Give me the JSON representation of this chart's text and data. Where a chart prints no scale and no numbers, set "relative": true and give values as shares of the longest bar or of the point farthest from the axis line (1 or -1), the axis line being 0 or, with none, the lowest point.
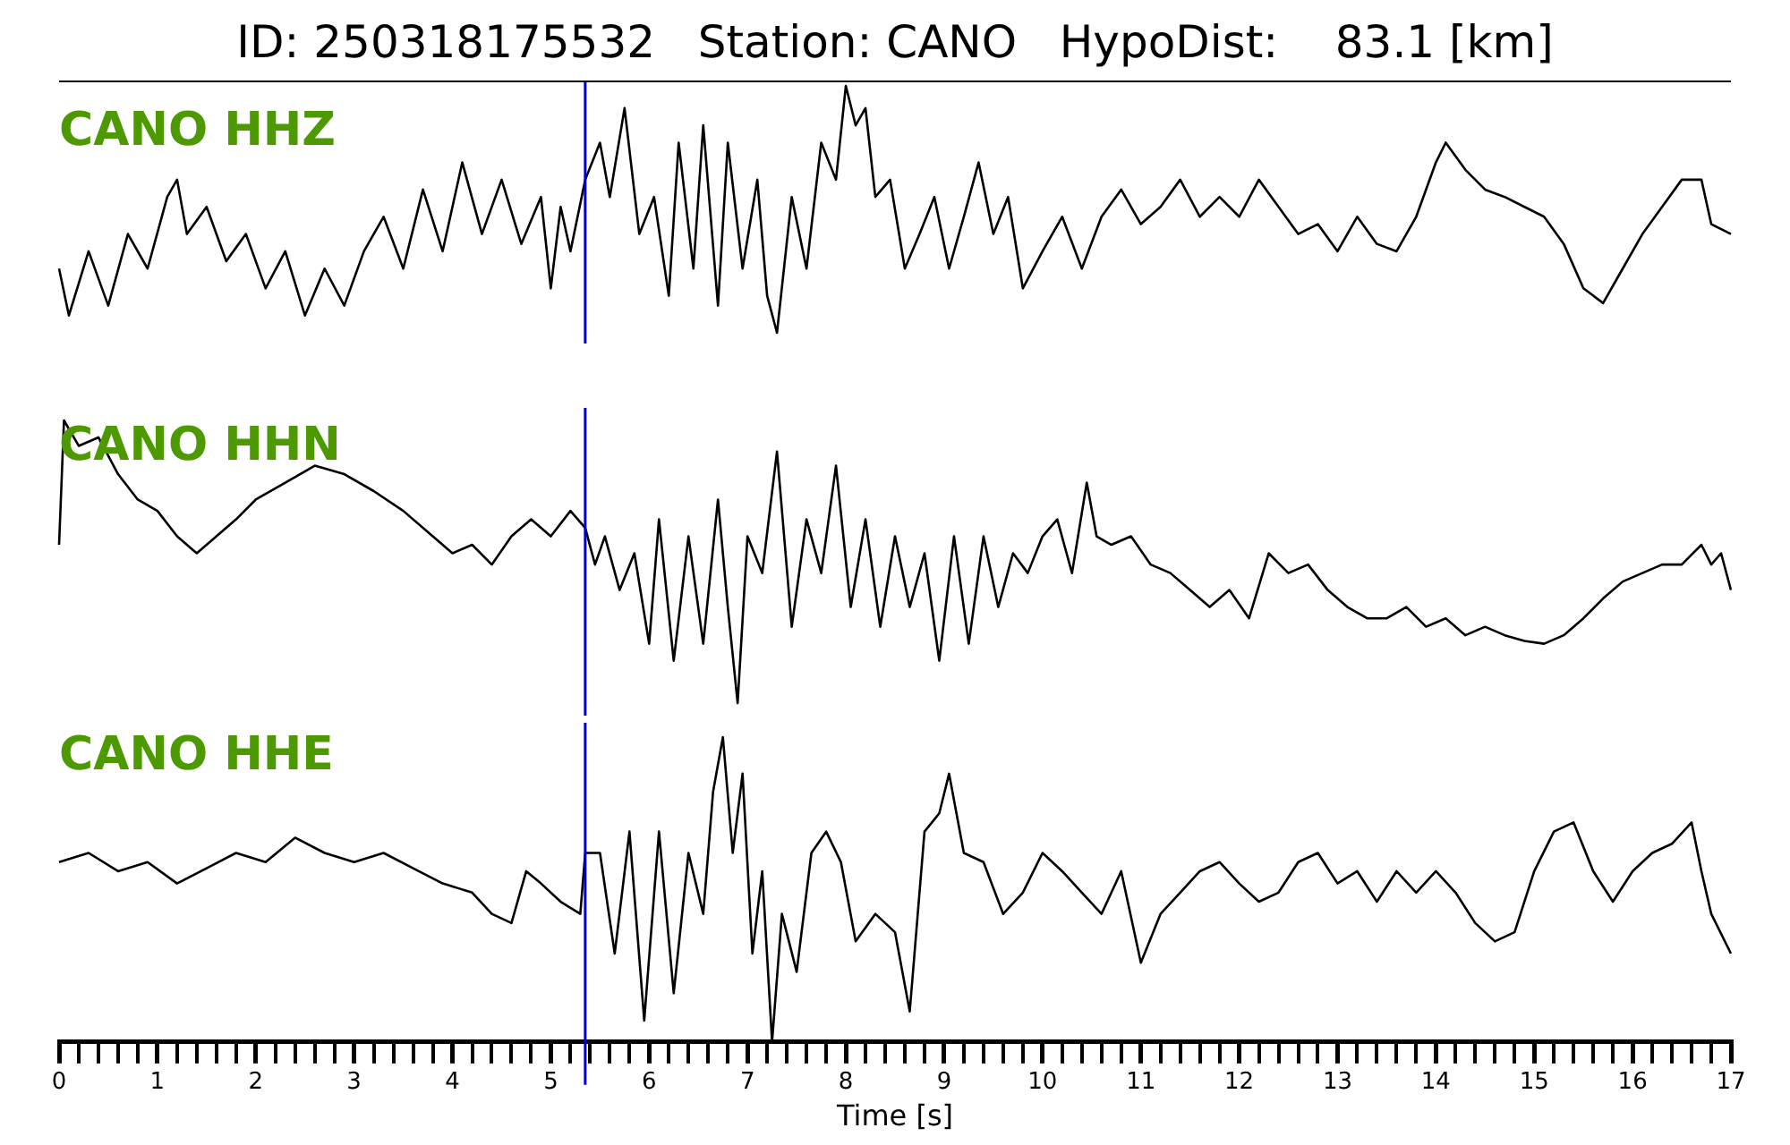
{
  "chart_data": [
    {
      "type": "line",
      "title": "ID: 250318175532   Station: CANO   HypoDist:    83.1 [km]",
      "annotations": [
        "CANO HHZ"
      ],
      "relative": true,
      "xlim": [
        0,
        17
      ],
      "tick_labels": false,
      "ref_lines": [
        {
          "axis": "x",
          "value": 5.35,
          "color": "#0000cc"
        }
      ],
      "series": [
        {
          "color": "#000000",
          "x": [
            0,
            0.1,
            0.3,
            0.5,
            0.7,
            0.9,
            1.1,
            1.2,
            1.3,
            1.5,
            1.7,
            1.9,
            2.1,
            2.3,
            2.5,
            2.7,
            2.9,
            3.1,
            3.3,
            3.5,
            3.7,
            3.9,
            4.1,
            4.3,
            4.5,
            4.7,
            4.9,
            5.0,
            5.1,
            5.2,
            5.35,
            5.5,
            5.6,
            5.75,
            5.9,
            6.05,
            6.2,
            6.3,
            6.45,
            6.55,
            6.7,
            6.8,
            6.95,
            7.1,
            7.2,
            7.3,
            7.45,
            7.6,
            7.75,
            7.9,
            8.0,
            8.1,
            8.2,
            8.3,
            8.45,
            8.6,
            8.75,
            8.9,
            9.05,
            9.2,
            9.35,
            9.5,
            9.65,
            9.8,
            10.0,
            10.2,
            10.4,
            10.6,
            10.8,
            11.0,
            11.2,
            11.4,
            11.6,
            11.8,
            12.0,
            12.2,
            12.4,
            12.6,
            12.8,
            13.0,
            13.2,
            13.4,
            13.6,
            13.8,
            14.0,
            14.1,
            14.3,
            14.5,
            14.7,
            14.9,
            15.1,
            15.3,
            15.5,
            15.7,
            15.9,
            16.1,
            16.3,
            16.5,
            16.7,
            16.8,
            17.0
          ],
          "values": [
            0.26,
            0.07,
            0.33,
            0.11,
            0.4,
            0.26,
            0.55,
            0.62,
            0.4,
            0.51,
            0.29,
            0.4,
            0.18,
            0.33,
            0.07,
            0.26,
            0.11,
            0.33,
            0.47,
            0.26,
            0.58,
            0.33,
            0.69,
            0.4,
            0.62,
            0.36,
            0.55,
            0.18,
            0.51,
            0.33,
            0.62,
            0.77,
            0.55,
            0.91,
            0.4,
            0.55,
            0.15,
            0.77,
            0.26,
            0.84,
            0.11,
            0.77,
            0.26,
            0.62,
            0.15,
            0,
            0.55,
            0.26,
            0.77,
            0.62,
            1,
            0.84,
            0.91,
            0.55,
            0.62,
            0.26,
            0.4,
            0.55,
            0.26,
            0.47,
            0.69,
            0.4,
            0.55,
            0.18,
            0.33,
            0.47,
            0.26,
            0.47,
            0.58,
            0.44,
            0.51,
            0.62,
            0.47,
            0.55,
            0.47,
            0.62,
            0.51,
            0.4,
            0.44,
            0.33,
            0.47,
            0.36,
            0.33,
            0.47,
            0.69,
            0.77,
            0.66,
            0.58,
            0.55,
            0.51,
            0.47,
            0.36,
            0.18,
            0.12,
            0.26,
            0.4,
            0.51,
            0.62,
            0.62,
            0.44,
            0.4
          ]
        }
      ]
    },
    {
      "type": "line",
      "annotations": [
        "CANO HHN"
      ],
      "relative": true,
      "xlim": [
        0,
        17
      ],
      "tick_labels": false,
      "ref_lines": [
        {
          "axis": "x",
          "value": 5.35,
          "color": "#0000cc"
        }
      ],
      "series": [
        {
          "color": "#000000",
          "x": [
            0,
            0.05,
            0.2,
            0.4,
            0.6,
            0.8,
            1.0,
            1.2,
            1.4,
            1.6,
            1.8,
            2.0,
            2.3,
            2.6,
            2.9,
            3.2,
            3.5,
            3.8,
            4.0,
            4.2,
            4.4,
            4.6,
            4.8,
            5.0,
            5.2,
            5.35,
            5.45,
            5.55,
            5.7,
            5.85,
            6.0,
            6.1,
            6.25,
            6.4,
            6.55,
            6.7,
            6.8,
            6.9,
            7.0,
            7.15,
            7.3,
            7.45,
            7.6,
            7.75,
            7.9,
            8.05,
            8.2,
            8.35,
            8.5,
            8.65,
            8.8,
            8.95,
            9.1,
            9.25,
            9.4,
            9.55,
            9.7,
            9.85,
            10.0,
            10.15,
            10.3,
            10.45,
            10.55,
            10.7,
            10.9,
            11.1,
            11.3,
            11.5,
            11.7,
            11.9,
            12.1,
            12.3,
            12.5,
            12.7,
            12.9,
            13.1,
            13.3,
            13.5,
            13.7,
            13.9,
            14.1,
            14.3,
            14.5,
            14.7,
            14.9,
            15.1,
            15.3,
            15.5,
            15.7,
            15.9,
            16.1,
            16.3,
            16.5,
            16.7,
            16.8,
            16.9,
            17.0
          ],
          "values": [
            0.56,
            1,
            0.91,
            0.94,
            0.81,
            0.72,
            0.68,
            0.59,
            0.53,
            0.59,
            0.65,
            0.72,
            0.78,
            0.84,
            0.81,
            0.75,
            0.68,
            0.59,
            0.53,
            0.56,
            0.49,
            0.59,
            0.65,
            0.59,
            0.68,
            0.62,
            0.49,
            0.59,
            0.4,
            0.53,
            0.21,
            0.65,
            0.15,
            0.59,
            0.21,
            0.72,
            0.34,
            0,
            0.59,
            0.46,
            0.89,
            0.27,
            0.65,
            0.46,
            0.84,
            0.34,
            0.65,
            0.27,
            0.59,
            0.34,
            0.53,
            0.15,
            0.59,
            0.21,
            0.59,
            0.34,
            0.53,
            0.46,
            0.59,
            0.65,
            0.46,
            0.78,
            0.59,
            0.56,
            0.59,
            0.49,
            0.46,
            0.4,
            0.34,
            0.4,
            0.3,
            0.53,
            0.46,
            0.49,
            0.4,
            0.34,
            0.3,
            0.3,
            0.34,
            0.27,
            0.3,
            0.24,
            0.27,
            0.24,
            0.22,
            0.21,
            0.24,
            0.3,
            0.37,
            0.43,
            0.46,
            0.49,
            0.49,
            0.56,
            0.49,
            0.53,
            0.4
          ]
        }
      ]
    },
    {
      "type": "line",
      "annotations": [
        "CANO HHE"
      ],
      "relative": true,
      "xlim": [
        0,
        17
      ],
      "tick_labels": "x",
      "xlabel": "Time [s]",
      "ref_lines": [
        {
          "axis": "x",
          "value": 5.35,
          "color": "#0000cc"
        }
      ],
      "xticks": [
        0,
        {
          "value": 0.2,
          "label": null
        },
        {
          "value": 0.4,
          "label": null
        },
        {
          "value": 0.6,
          "label": null
        },
        {
          "value": 0.8,
          "label": null
        },
        1,
        {
          "value": 1.2,
          "label": null
        },
        {
          "value": 1.4,
          "label": null
        },
        {
          "value": 1.6,
          "label": null
        },
        {
          "value": 1.8,
          "label": null
        },
        2,
        {
          "value": 2.2,
          "label": null
        },
        {
          "value": 2.4,
          "label": null
        },
        {
          "value": 2.6,
          "label": null
        },
        {
          "value": 2.8,
          "label": null
        },
        3,
        {
          "value": 3.2,
          "label": null
        },
        {
          "value": 3.4,
          "label": null
        },
        {
          "value": 3.6,
          "label": null
        },
        {
          "value": 3.8,
          "label": null
        },
        4,
        {
          "value": 4.2,
          "label": null
        },
        {
          "value": 4.4,
          "label": null
        },
        {
          "value": 4.6,
          "label": null
        },
        {
          "value": 4.8,
          "label": null
        },
        5,
        {
          "value": 5.2,
          "label": null
        },
        {
          "value": 5.4,
          "label": null
        },
        {
          "value": 5.6,
          "label": null
        },
        {
          "value": 5.8,
          "label": null
        },
        6,
        {
          "value": 6.2,
          "label": null
        },
        {
          "value": 6.4,
          "label": null
        },
        {
          "value": 6.6,
          "label": null
        },
        {
          "value": 6.8,
          "label": null
        },
        7,
        {
          "value": 7.2,
          "label": null
        },
        {
          "value": 7.4,
          "label": null
        },
        {
          "value": 7.6,
          "label": null
        },
        {
          "value": 7.8,
          "label": null
        },
        8,
        {
          "value": 8.2,
          "label": null
        },
        {
          "value": 8.4,
          "label": null
        },
        {
          "value": 8.6,
          "label": null
        },
        {
          "value": 8.8,
          "label": null
        },
        9,
        {
          "value": 9.2,
          "label": null
        },
        {
          "value": 9.4,
          "label": null
        },
        {
          "value": 9.6,
          "label": null
        },
        {
          "value": 9.8,
          "label": null
        },
        10,
        {
          "value": 10.2,
          "label": null
        },
        {
          "value": 10.4,
          "label": null
        },
        {
          "value": 10.6,
          "label": null
        },
        {
          "value": 10.8,
          "label": null
        },
        11,
        {
          "value": 11.2,
          "label": null
        },
        {
          "value": 11.4,
          "label": null
        },
        {
          "value": 11.6,
          "label": null
        },
        {
          "value": 11.8,
          "label": null
        },
        12,
        {
          "value": 12.2,
          "label": null
        },
        {
          "value": 12.4,
          "label": null
        },
        {
          "value": 12.6,
          "label": null
        },
        {
          "value": 12.8,
          "label": null
        },
        13,
        {
          "value": 13.2,
          "label": null
        },
        {
          "value": 13.4,
          "label": null
        },
        {
          "value": 13.6,
          "label": null
        },
        {
          "value": 13.8,
          "label": null
        },
        14,
        {
          "value": 14.2,
          "label": null
        },
        {
          "value": 14.4,
          "label": null
        },
        {
          "value": 14.6,
          "label": null
        },
        {
          "value": 14.8,
          "label": null
        },
        15,
        {
          "value": 15.2,
          "label": null
        },
        {
          "value": 15.4,
          "label": null
        },
        {
          "value": 15.6,
          "label": null
        },
        {
          "value": 15.8,
          "label": null
        },
        16,
        {
          "value": 16.2,
          "label": null
        },
        {
          "value": 16.4,
          "label": null
        },
        {
          "value": 16.6,
          "label": null
        },
        {
          "value": 16.8,
          "label": null
        },
        17
      ],
      "series": [
        {
          "color": "#000000",
          "x": [
            0,
            0.3,
            0.6,
            0.9,
            1.2,
            1.5,
            1.8,
            2.1,
            2.4,
            2.7,
            3.0,
            3.3,
            3.6,
            3.9,
            4.2,
            4.4,
            4.6,
            4.75,
            4.9,
            5.1,
            5.3,
            5.35,
            5.5,
            5.65,
            5.8,
            5.95,
            6.1,
            6.25,
            6.4,
            6.55,
            6.65,
            6.75,
            6.85,
            6.95,
            7.05,
            7.15,
            7.25,
            7.35,
            7.5,
            7.65,
            7.8,
            7.95,
            8.1,
            8.3,
            8.5,
            8.65,
            8.8,
            8.95,
            9.05,
            9.2,
            9.4,
            9.6,
            9.8,
            10.0,
            10.2,
            10.4,
            10.6,
            10.8,
            11.0,
            11.2,
            11.4,
            11.6,
            11.8,
            12.0,
            12.2,
            12.4,
            12.6,
            12.8,
            13.0,
            13.2,
            13.4,
            13.6,
            13.8,
            14.0,
            14.2,
            14.4,
            14.6,
            14.8,
            15.0,
            15.2,
            15.4,
            15.6,
            15.8,
            16.0,
            16.2,
            16.4,
            16.6,
            16.7,
            16.8,
            17.0
          ],
          "values": [
            0.59,
            0.62,
            0.56,
            0.59,
            0.52,
            0.57,
            0.62,
            0.59,
            0.67,
            0.62,
            0.59,
            0.62,
            0.57,
            0.52,
            0.49,
            0.42,
            0.39,
            0.56,
            0.52,
            0.46,
            0.42,
            0.62,
            0.62,
            0.29,
            0.69,
            0.07,
            0.69,
            0.16,
            0.62,
            0.42,
            0.82,
            1,
            0.62,
            0.88,
            0.29,
            0.56,
            0,
            0.42,
            0.23,
            0.62,
            0.69,
            0.59,
            0.33,
            0.42,
            0.36,
            0.1,
            0.69,
            0.75,
            0.88,
            0.62,
            0.59,
            0.42,
            0.49,
            0.62,
            0.56,
            0.49,
            0.42,
            0.56,
            0.26,
            0.42,
            0.49,
            0.56,
            0.59,
            0.52,
            0.46,
            0.49,
            0.59,
            0.62,
            0.52,
            0.56,
            0.46,
            0.56,
            0.49,
            0.56,
            0.49,
            0.39,
            0.33,
            0.36,
            0.56,
            0.69,
            0.72,
            0.56,
            0.46,
            0.56,
            0.62,
            0.65,
            0.72,
            0.56,
            0.42,
            0.29
          ]
        }
      ]
    }
  ]
}
